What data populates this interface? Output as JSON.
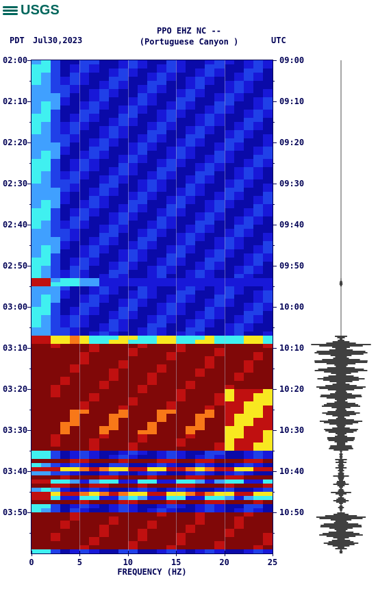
{
  "logo_text": "USGS",
  "header_line1": "PPO EHZ NC --",
  "header_line2": "(Portuguese Canyon )",
  "left_tz": "PDT",
  "right_tz": "UTC",
  "date": "Jul30,2023",
  "xaxis_title": "FREQUENCY (HZ)",
  "xaxis": {
    "min": 0,
    "max": 25,
    "ticks": [
      0,
      5,
      10,
      15,
      20,
      25
    ]
  },
  "yaxis_left_labels": [
    "02:00",
    "02:10",
    "02:20",
    "02:30",
    "02:40",
    "02:50",
    "03:00",
    "03:10",
    "03:20",
    "03:30",
    "03:40",
    "03:50"
  ],
  "yaxis_right_labels": [
    "09:00",
    "09:10",
    "09:20",
    "09:30",
    "09:40",
    "09:50",
    "10:00",
    "10:10",
    "10:20",
    "10:30",
    "10:40",
    "10:50"
  ],
  "time_rows": 120,
  "freq_cols": 25,
  "colors": {
    "dark_blue": "#0a0aa8",
    "blue": "#1818d8",
    "mid_blue": "#2040e8",
    "light_blue": "#40a0ff",
    "cyan": "#40f0f0",
    "yellow": "#f8e820",
    "orange": "#f87818",
    "red": "#c01010",
    "dark_red": "#800808",
    "frame": "#000055",
    "grid": "#c0c0d8",
    "logo": "#00665c",
    "bg": "#ffffff",
    "waveform": "#000000"
  },
  "spectrogram_segments": [
    {
      "start": 0,
      "end": 53,
      "mode": "quiet"
    },
    {
      "start": 53,
      "end": 55,
      "mode": "event_line"
    },
    {
      "start": 55,
      "end": 67,
      "mode": "quiet"
    },
    {
      "start": 67,
      "end": 69,
      "mode": "transition"
    },
    {
      "start": 69,
      "end": 95,
      "mode": "strong"
    },
    {
      "start": 95,
      "end": 97,
      "mode": "quiet"
    },
    {
      "start": 97,
      "end": 98,
      "mode": "strong_band"
    },
    {
      "start": 98,
      "end": 99,
      "mode": "quiet"
    },
    {
      "start": 99,
      "end": 100,
      "mode": "mix_band"
    },
    {
      "start": 100,
      "end": 101,
      "mode": "quiet"
    },
    {
      "start": 101,
      "end": 102,
      "mode": "strong_band"
    },
    {
      "start": 102,
      "end": 103,
      "mode": "cyan_band"
    },
    {
      "start": 103,
      "end": 104,
      "mode": "strong_band"
    },
    {
      "start": 104,
      "end": 105,
      "mode": "quiet"
    },
    {
      "start": 105,
      "end": 106,
      "mode": "mix_band"
    },
    {
      "start": 106,
      "end": 107,
      "mode": "cyan_band"
    },
    {
      "start": 107,
      "end": 108,
      "mode": "strong_band"
    },
    {
      "start": 108,
      "end": 110,
      "mode": "quiet"
    },
    {
      "start": 110,
      "end": 119,
      "mode": "strong"
    },
    {
      "start": 119,
      "end": 120,
      "mode": "quiet"
    }
  ],
  "waveform_amplitude_per_row": [
    0,
    0,
    0,
    0,
    0,
    0,
    0,
    0,
    0,
    0,
    0,
    0,
    0,
    0,
    0,
    0,
    0,
    0,
    0,
    0,
    0,
    0,
    0,
    0,
    0,
    0,
    0,
    0,
    0,
    0,
    0,
    0,
    0,
    0,
    0,
    0,
    0,
    0,
    0,
    0,
    0,
    0,
    0,
    0,
    0,
    0,
    0,
    0,
    0,
    0,
    0,
    0,
    0,
    0.05,
    0.05,
    0,
    0,
    0,
    0,
    0,
    0,
    0,
    0,
    0,
    0,
    0,
    0,
    0.2,
    0.5,
    0.95,
    0.9,
    0.85,
    0.8,
    0.9,
    0.7,
    0.85,
    0.8,
    0.75,
    0.7,
    0.8,
    0.65,
    0.7,
    0.6,
    0.55,
    0.7,
    0.6,
    0.5,
    0.7,
    0.55,
    0.6,
    0.5,
    0.55,
    0.45,
    0.5,
    0.4,
    0.1,
    0.05,
    0.4,
    0.1,
    0.3,
    0.1,
    0.35,
    0.15,
    0.3,
    0.1,
    0.35,
    0.15,
    0.25,
    0.1,
    0.05,
    0.6,
    0.8,
    0.75,
    0.7,
    0.65,
    0.7,
    0.6,
    0.55,
    0.5,
    0.05
  ]
}
